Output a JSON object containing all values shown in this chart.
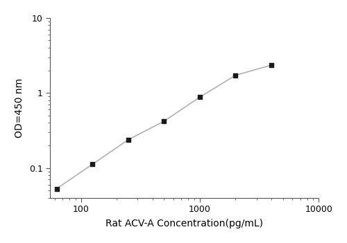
{
  "x": [
    62.5,
    125,
    250,
    500,
    1000,
    2000,
    4000
  ],
  "y": [
    0.053,
    0.112,
    0.238,
    0.42,
    0.88,
    1.72,
    2.35
  ],
  "xlabel": "Rat ACV-A Concentration(pg/mL)",
  "ylabel": "OD=450 nm",
  "xlim": [
    55,
    10000
  ],
  "ylim": [
    0.04,
    10
  ],
  "line_color": "#b0b0b0",
  "marker_color": "#1a1a1a",
  "marker_size": 5,
  "line_width": 1.2,
  "background_color": "#ffffff",
  "yticks": [
    0.1,
    1
  ],
  "ytick_labels": [
    "0.1",
    "1"
  ],
  "xticks": [
    100,
    1000,
    10000
  ],
  "xtick_labels": [
    "100",
    "1000",
    "10000"
  ]
}
